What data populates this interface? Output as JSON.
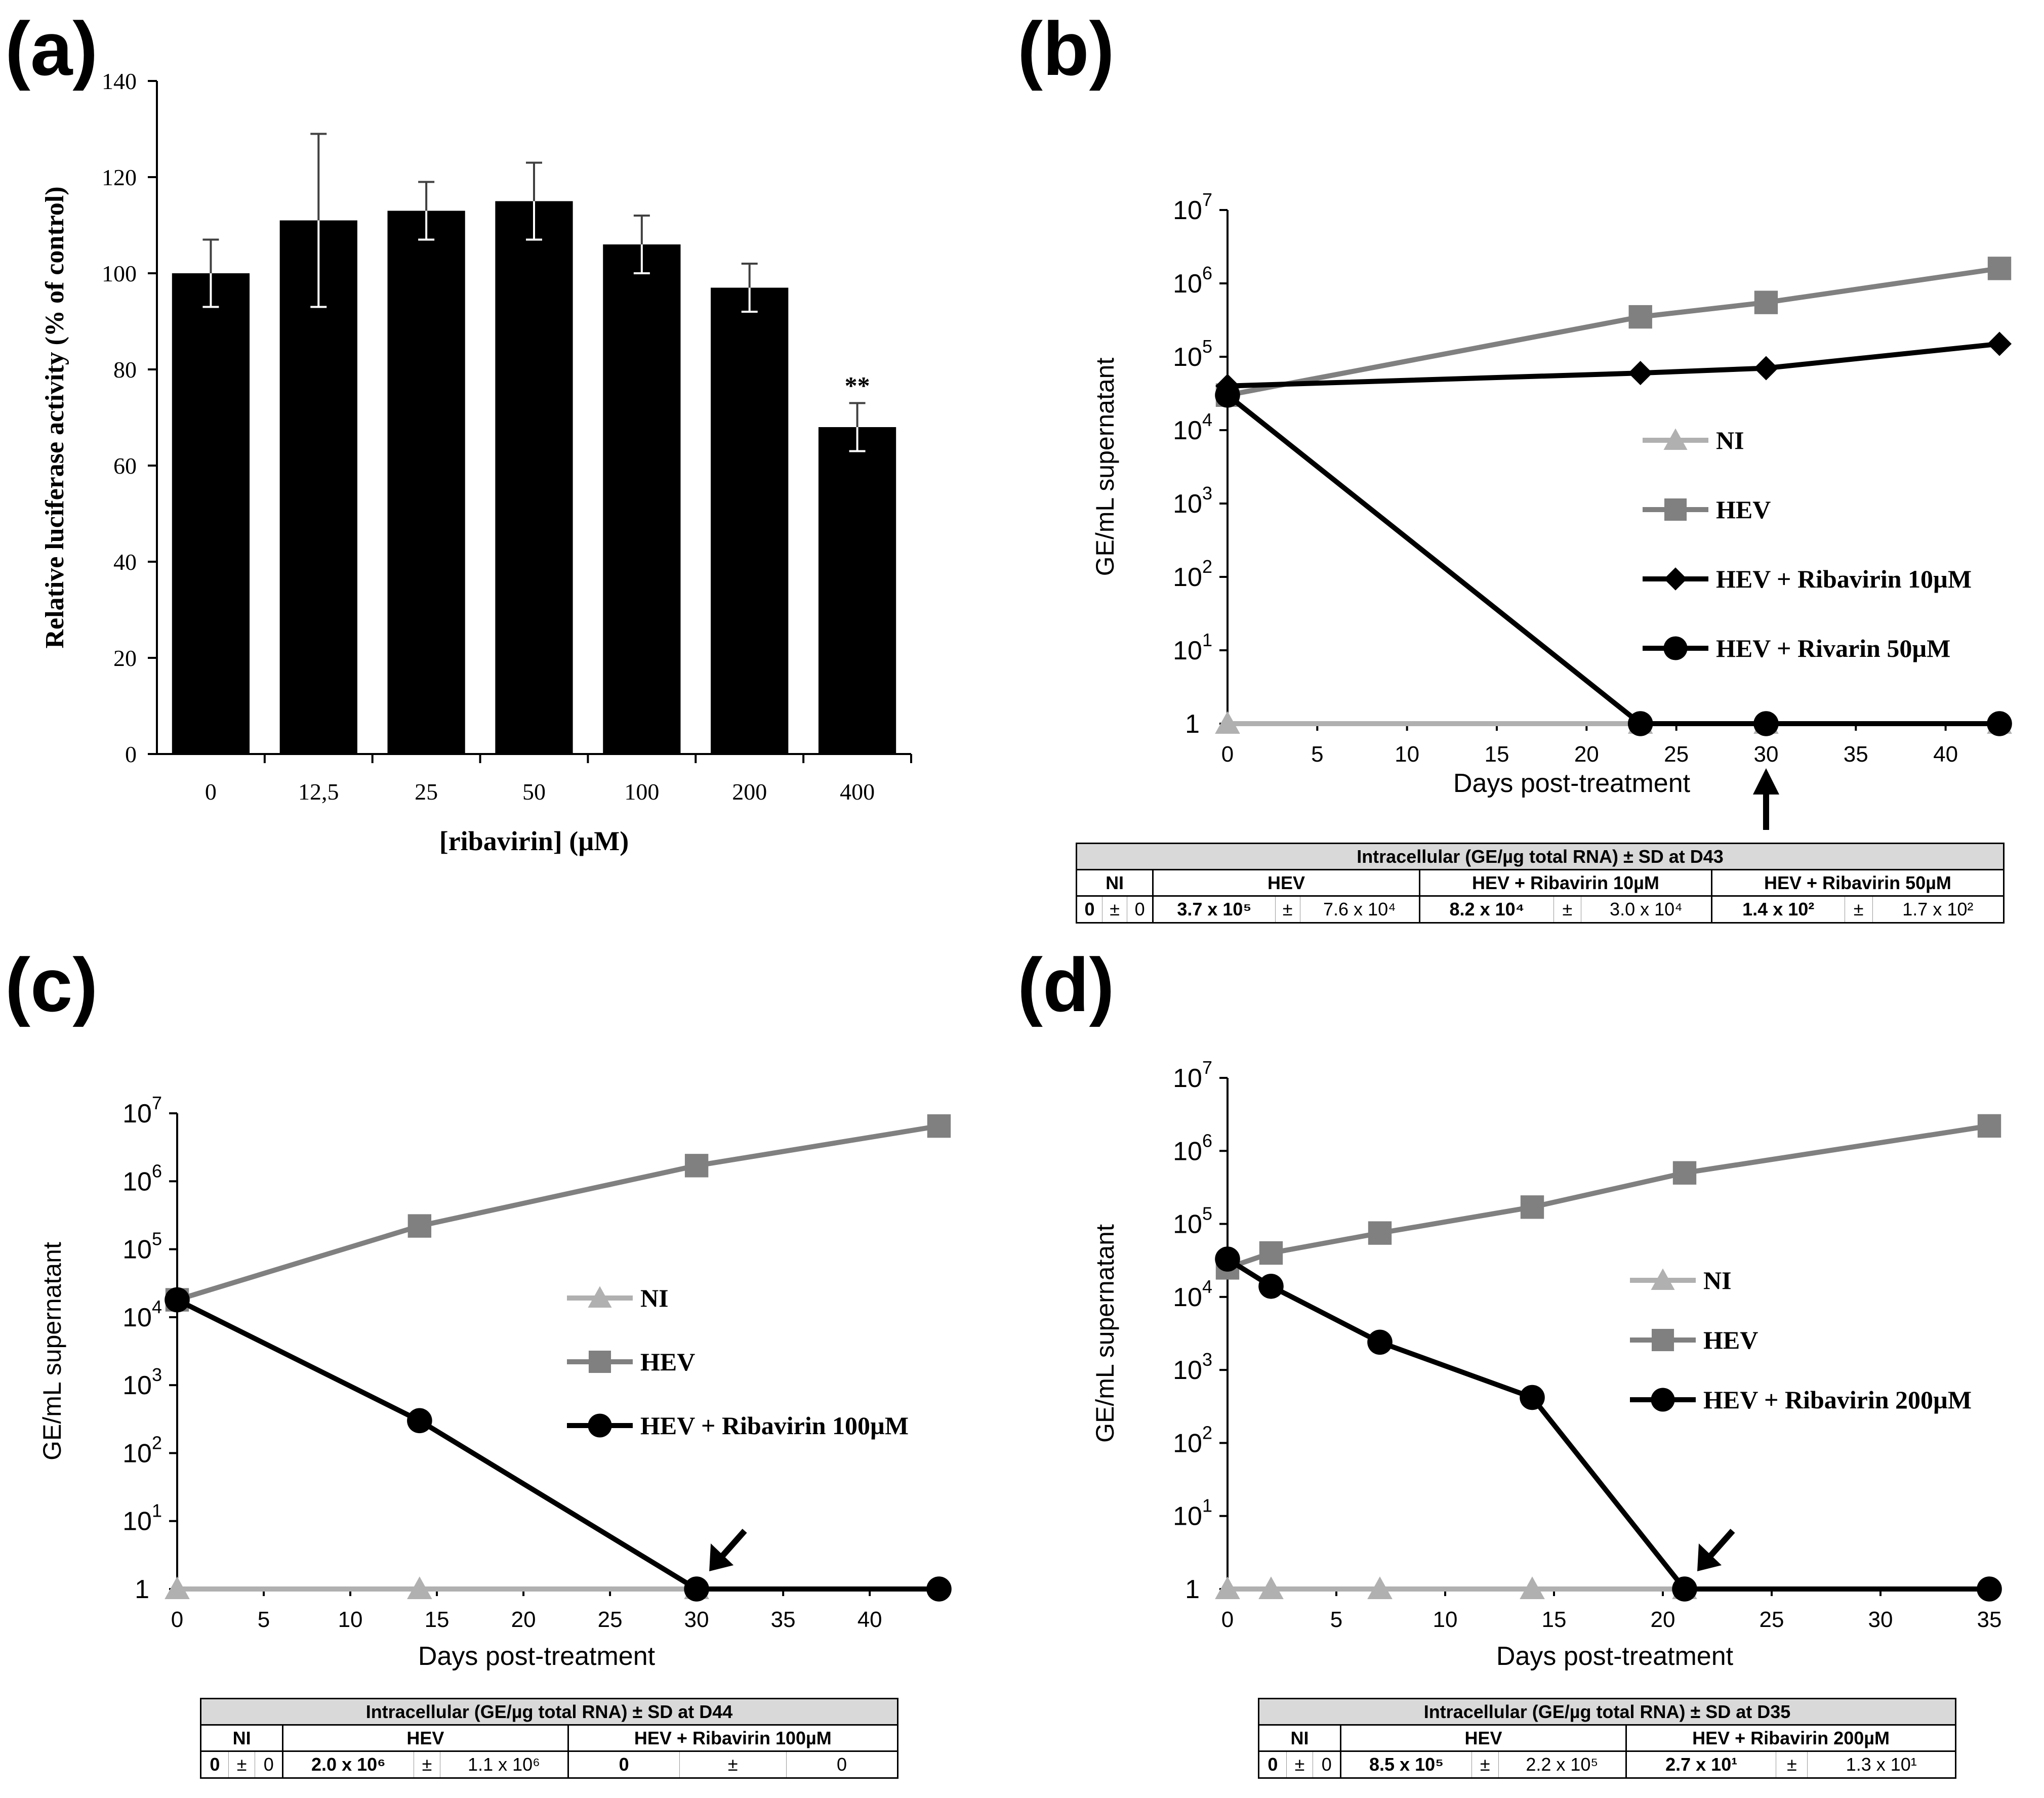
{
  "panel_labels": [
    "(a)",
    "(b)",
    "(c)",
    "(d)"
  ],
  "colors": {
    "ni": "#b0b0b0",
    "hev": "#808080",
    "treated": "#000000",
    "bar": "#000000"
  },
  "chart_data": [
    {
      "id": "a",
      "type": "bar",
      "categories": [
        "0",
        "12,5",
        "25",
        "50",
        "100",
        "200",
        "400"
      ],
      "values": [
        100,
        111,
        113,
        115,
        106,
        97,
        68
      ],
      "errors": [
        7,
        18,
        6,
        8,
        6,
        5,
        5
      ],
      "annotations": [
        {
          "category": "400",
          "text": "**"
        }
      ],
      "ylim": [
        0,
        140
      ],
      "yticks": [
        "0",
        "20",
        "40",
        "60",
        "80",
        "100",
        "120",
        "140"
      ],
      "xlabel": "[ribavirin]  (µM)",
      "ylabel": "Relative luciferase activity (% of control)"
    },
    {
      "id": "b",
      "type": "line",
      "y_scale": "log",
      "ylim": [
        1,
        10000000
      ],
      "xlim": [
        0,
        43
      ],
      "xticks": [
        "0",
        "5",
        "10",
        "15",
        "20",
        "25",
        "30",
        "35",
        "40"
      ],
      "yticks": [
        "1",
        "10",
        "10",
        "10",
        "10",
        "10",
        "10",
        "10"
      ],
      "ytick_exp": [
        "",
        "1",
        "2",
        "3",
        "4",
        "5",
        "6",
        "7"
      ],
      "xlabel": "Days post-treatment",
      "ylabel": "GE/mL supernatant",
      "arrow_day": 30,
      "series": [
        {
          "name": "NI",
          "marker": "triangle",
          "x": [
            0,
            23,
            30,
            43
          ],
          "y": [
            1,
            1,
            1,
            1
          ]
        },
        {
          "name": "HEV",
          "marker": "square",
          "x": [
            0,
            23,
            30,
            43
          ],
          "y": [
            30000,
            350000,
            550000,
            1600000
          ]
        },
        {
          "name": "HEV + Ribavirin 10µM",
          "marker": "diamond",
          "x": [
            0,
            23,
            30,
            43
          ],
          "y": [
            40000,
            60000,
            70000,
            150000
          ]
        },
        {
          "name": "HEV + Rivarin 50µM",
          "marker": "circle",
          "x": [
            0,
            23,
            30,
            43
          ],
          "y": [
            30000,
            1,
            1,
            1
          ]
        }
      ],
      "table": {
        "title": "Intracellular (GE/µg total RNA) ± SD at D43",
        "groups": [
          {
            "name": "NI",
            "mean": "0",
            "sd": "0"
          },
          {
            "name": "HEV",
            "mean": "3.7 x 10⁵",
            "sd": "7.6 x 10⁴"
          },
          {
            "name": "HEV + Ribavirin 10µM",
            "mean": "8.2 x 10⁴",
            "sd": "3.0 x 10⁴"
          },
          {
            "name": "HEV + Ribavirin 50µM",
            "mean": "1.4 x 10²",
            "sd": "1.7 x 10²"
          }
        ],
        "pm": "±"
      }
    },
    {
      "id": "c",
      "type": "line",
      "y_scale": "log",
      "ylim": [
        1,
        10000000
      ],
      "xlim": [
        0,
        44
      ],
      "xticks": [
        "0",
        "5",
        "10",
        "15",
        "20",
        "25",
        "30",
        "35",
        "40"
      ],
      "yticks": [
        "1",
        "10",
        "10",
        "10",
        "10",
        "10",
        "10",
        "10"
      ],
      "ytick_exp": [
        "",
        "1",
        "2",
        "3",
        "4",
        "5",
        "6",
        "7"
      ],
      "xlabel": "Days post-treatment",
      "ylabel": "GE/mL supernatant",
      "arrow_day": 30,
      "series": [
        {
          "name": "NI",
          "marker": "triangle",
          "x": [
            0,
            14,
            30
          ],
          "y": [
            1,
            1,
            1
          ]
        },
        {
          "name": "HEV",
          "marker": "square",
          "x": [
            0,
            14,
            30,
            44
          ],
          "y": [
            18000,
            220000,
            1700000,
            6500000
          ]
        },
        {
          "name": "HEV + Ribavirin 100µM",
          "marker": "circle",
          "x": [
            0,
            14,
            30,
            44
          ],
          "y": [
            18000,
            300,
            1,
            1
          ]
        }
      ],
      "table": {
        "title": "Intracellular (GE/µg total RNA) ± SD at D44",
        "groups": [
          {
            "name": "NI",
            "mean": "0",
            "sd": "0"
          },
          {
            "name": "HEV",
            "mean": "2.0 x 10⁶",
            "sd": "1.1 x 10⁶"
          },
          {
            "name": "HEV + Ribavirin 100µM",
            "mean": "0",
            "sd": "0"
          }
        ],
        "pm": "±"
      }
    },
    {
      "id": "d",
      "type": "line",
      "y_scale": "log",
      "ylim": [
        1,
        10000000
      ],
      "xlim": [
        0,
        35
      ],
      "xticks": [
        "0",
        "5",
        "10",
        "15",
        "20",
        "25",
        "30",
        "35"
      ],
      "yticks": [
        "1",
        "10",
        "10",
        "10",
        "10",
        "10",
        "10",
        "10"
      ],
      "ytick_exp": [
        "",
        "1",
        "2",
        "3",
        "4",
        "5",
        "6",
        "7"
      ],
      "xlabel": "Days post-treatment",
      "ylabel": "GE/mL supernatant",
      "arrow_day": 21,
      "series": [
        {
          "name": "NI",
          "marker": "triangle",
          "x": [
            0,
            2,
            7,
            14,
            21
          ],
          "y": [
            1,
            1,
            1,
            1,
            1
          ]
        },
        {
          "name": "HEV",
          "marker": "square",
          "x": [
            0,
            2,
            7,
            14,
            21,
            35
          ],
          "y": [
            25000,
            40000,
            75000,
            170000,
            500000,
            2200000
          ]
        },
        {
          "name": "HEV + Ribavirin 200µM",
          "marker": "circle",
          "x": [
            0,
            2,
            7,
            14,
            21,
            35
          ],
          "y": [
            33000,
            14000,
            2400,
            420,
            1,
            1
          ]
        }
      ],
      "table": {
        "title": "Intracellular (GE/µg total RNA) ± SD at D35",
        "groups": [
          {
            "name": "NI",
            "mean": "0",
            "sd": "0"
          },
          {
            "name": "HEV",
            "mean": "8.5 x 10⁵",
            "sd": "2.2 x 10⁵"
          },
          {
            "name": "HEV + Ribavirin 200µM",
            "mean": "2.7 x 10¹",
            "sd": "1.3 x 10¹"
          }
        ],
        "pm": "±"
      }
    }
  ]
}
